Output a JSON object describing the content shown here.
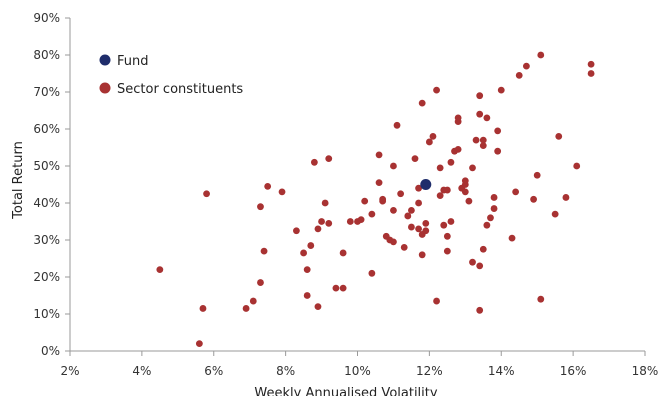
{
  "chart_data": {
    "type": "scatter",
    "title": "",
    "xlabel": "Weekly Annualised Volatility",
    "ylabel": "Total Return",
    "xlim": [
      2,
      18
    ],
    "ylim": [
      0,
      90
    ],
    "x_ticks": [
      2,
      4,
      6,
      8,
      10,
      12,
      14,
      16,
      18
    ],
    "y_ticks": [
      0,
      10,
      20,
      30,
      40,
      50,
      60,
      70,
      80,
      90
    ],
    "x_tick_labels": [
      "2%",
      "4%",
      "6%",
      "8%",
      "10%",
      "12%",
      "14%",
      "16%",
      "18%"
    ],
    "y_tick_labels": [
      "0%",
      "10%",
      "20%",
      "30%",
      "40%",
      "50%",
      "60%",
      "70%",
      "80%",
      "90%"
    ],
    "grid": false,
    "legend_position": "top-left",
    "series": [
      {
        "name": "Fund",
        "color": "#1f2d6b",
        "points": [
          {
            "x": 11.9,
            "y": 45.0
          }
        ]
      },
      {
        "name": "Sector constituents",
        "color": "#a83232",
        "points": [
          {
            "x": 4.5,
            "y": 22.0
          },
          {
            "x": 5.6,
            "y": 2.0
          },
          {
            "x": 5.7,
            "y": 11.5
          },
          {
            "x": 5.8,
            "y": 42.5
          },
          {
            "x": 6.9,
            "y": 11.5
          },
          {
            "x": 7.1,
            "y": 13.5
          },
          {
            "x": 7.3,
            "y": 39.0
          },
          {
            "x": 7.3,
            "y": 18.5
          },
          {
            "x": 7.4,
            "y": 27.0
          },
          {
            "x": 7.5,
            "y": 44.5
          },
          {
            "x": 7.9,
            "y": 43.0
          },
          {
            "x": 8.3,
            "y": 32.5
          },
          {
            "x": 8.5,
            "y": 26.5
          },
          {
            "x": 8.6,
            "y": 15.0
          },
          {
            "x": 8.6,
            "y": 22.0
          },
          {
            "x": 8.7,
            "y": 28.5
          },
          {
            "x": 8.8,
            "y": 51.0
          },
          {
            "x": 8.9,
            "y": 33.0
          },
          {
            "x": 8.9,
            "y": 12.0
          },
          {
            "x": 9.0,
            "y": 35.0
          },
          {
            "x": 9.1,
            "y": 40.0
          },
          {
            "x": 9.2,
            "y": 52.0
          },
          {
            "x": 9.2,
            "y": 34.5
          },
          {
            "x": 9.4,
            "y": 17.0
          },
          {
            "x": 9.6,
            "y": 17.0
          },
          {
            "x": 9.6,
            "y": 26.5
          },
          {
            "x": 9.8,
            "y": 35.0
          },
          {
            "x": 10.0,
            "y": 35.0
          },
          {
            "x": 10.1,
            "y": 35.5
          },
          {
            "x": 10.2,
            "y": 40.5
          },
          {
            "x": 10.4,
            "y": 37.0
          },
          {
            "x": 10.4,
            "y": 21.0
          },
          {
            "x": 10.6,
            "y": 45.5
          },
          {
            "x": 10.6,
            "y": 53.0
          },
          {
            "x": 10.7,
            "y": 41.0
          },
          {
            "x": 10.7,
            "y": 40.5
          },
          {
            "x": 10.8,
            "y": 31.0
          },
          {
            "x": 10.9,
            "y": 30.0
          },
          {
            "x": 11.0,
            "y": 50.0
          },
          {
            "x": 11.0,
            "y": 38.0
          },
          {
            "x": 11.0,
            "y": 29.5
          },
          {
            "x": 11.1,
            "y": 61.0
          },
          {
            "x": 11.2,
            "y": 42.5
          },
          {
            "x": 11.3,
            "y": 28.0
          },
          {
            "x": 11.4,
            "y": 36.5
          },
          {
            "x": 11.5,
            "y": 33.5
          },
          {
            "x": 11.5,
            "y": 38.0
          },
          {
            "x": 11.6,
            "y": 52.0
          },
          {
            "x": 11.7,
            "y": 44.0
          },
          {
            "x": 11.7,
            "y": 40.0
          },
          {
            "x": 11.7,
            "y": 33.0
          },
          {
            "x": 11.8,
            "y": 26.0
          },
          {
            "x": 11.8,
            "y": 31.5
          },
          {
            "x": 11.8,
            "y": 67.0
          },
          {
            "x": 11.9,
            "y": 34.5
          },
          {
            "x": 11.9,
            "y": 32.5
          },
          {
            "x": 12.0,
            "y": 56.5
          },
          {
            "x": 12.1,
            "y": 58.0
          },
          {
            "x": 12.2,
            "y": 70.5
          },
          {
            "x": 12.2,
            "y": 13.5
          },
          {
            "x": 12.3,
            "y": 49.5
          },
          {
            "x": 12.3,
            "y": 42.0
          },
          {
            "x": 12.4,
            "y": 43.5
          },
          {
            "x": 12.4,
            "y": 34.0
          },
          {
            "x": 12.5,
            "y": 27.0
          },
          {
            "x": 12.5,
            "y": 31.0
          },
          {
            "x": 12.5,
            "y": 43.5
          },
          {
            "x": 12.6,
            "y": 51.0
          },
          {
            "x": 12.6,
            "y": 35.0
          },
          {
            "x": 12.7,
            "y": 54.0
          },
          {
            "x": 12.8,
            "y": 54.5
          },
          {
            "x": 12.8,
            "y": 62.0
          },
          {
            "x": 12.8,
            "y": 63.0
          },
          {
            "x": 12.9,
            "y": 44.0
          },
          {
            "x": 13.0,
            "y": 45.0
          },
          {
            "x": 13.0,
            "y": 46.0
          },
          {
            "x": 13.0,
            "y": 43.0
          },
          {
            "x": 13.1,
            "y": 40.5
          },
          {
            "x": 13.2,
            "y": 24.0
          },
          {
            "x": 13.2,
            "y": 49.5
          },
          {
            "x": 13.3,
            "y": 57.0
          },
          {
            "x": 13.4,
            "y": 64.0
          },
          {
            "x": 13.4,
            "y": 69.0
          },
          {
            "x": 13.4,
            "y": 11.0
          },
          {
            "x": 13.4,
            "y": 23.0
          },
          {
            "x": 13.5,
            "y": 27.5
          },
          {
            "x": 13.5,
            "y": 55.5
          },
          {
            "x": 13.5,
            "y": 57.0
          },
          {
            "x": 13.6,
            "y": 63.0
          },
          {
            "x": 13.6,
            "y": 34.0
          },
          {
            "x": 13.7,
            "y": 36.0
          },
          {
            "x": 13.8,
            "y": 41.5
          },
          {
            "x": 13.8,
            "y": 38.5
          },
          {
            "x": 13.9,
            "y": 54.0
          },
          {
            "x": 13.9,
            "y": 59.5
          },
          {
            "x": 14.0,
            "y": 70.5
          },
          {
            "x": 14.3,
            "y": 30.5
          },
          {
            "x": 14.4,
            "y": 43.0
          },
          {
            "x": 14.5,
            "y": 74.5
          },
          {
            "x": 14.7,
            "y": 77.0
          },
          {
            "x": 14.9,
            "y": 41.0
          },
          {
            "x": 15.0,
            "y": 47.5
          },
          {
            "x": 15.1,
            "y": 80.0
          },
          {
            "x": 15.1,
            "y": 14.0
          },
          {
            "x": 15.5,
            "y": 37.0
          },
          {
            "x": 15.6,
            "y": 58.0
          },
          {
            "x": 15.8,
            "y": 41.5
          },
          {
            "x": 16.1,
            "y": 50.0
          },
          {
            "x": 16.5,
            "y": 77.5
          },
          {
            "x": 16.5,
            "y": 75.0
          }
        ]
      }
    ]
  }
}
